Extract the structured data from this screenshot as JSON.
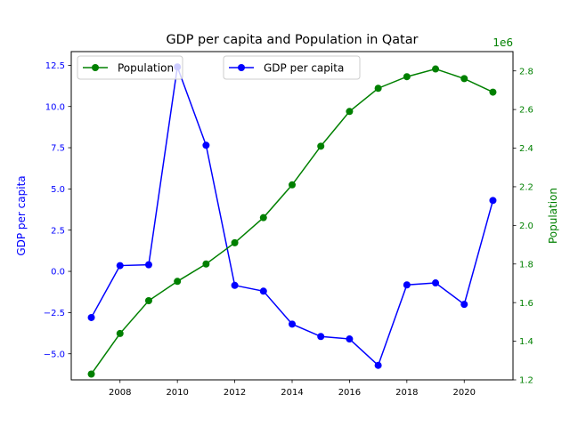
{
  "chart_data": {
    "type": "line",
    "title": "GDP per capita and Population in Qatar",
    "x": [
      2007,
      2008,
      2009,
      2010,
      2011,
      2012,
      2013,
      2014,
      2015,
      2016,
      2017,
      2018,
      2019,
      2020,
      2021
    ],
    "xlim": [
      2006.3,
      2021.7
    ],
    "xticks": [
      2008,
      2010,
      2012,
      2014,
      2016,
      2018,
      2020
    ],
    "grid": false,
    "left_axis": {
      "label": "GDP per capita",
      "color": "#0000ff",
      "ylim": [
        -6.58,
        13.33
      ],
      "ticks": [
        -5.0,
        -2.5,
        0.0,
        2.5,
        5.0,
        7.5,
        10.0,
        12.5
      ],
      "tick_labels": [
        "−5.0",
        "−2.5",
        "0.0",
        "2.5",
        "5.0",
        "7.5",
        "10.0",
        "12.5"
      ]
    },
    "right_axis": {
      "label": "Population",
      "color": "#008000",
      "offset_text": "1e6",
      "ylim": [
        1.2,
        2.9
      ],
      "ticks": [
        1.2,
        1.4,
        1.6,
        1.8,
        2.0,
        2.2,
        2.4,
        2.6,
        2.8
      ],
      "tick_labels": [
        "1.2",
        "1.4",
        "1.6",
        "1.8",
        "2.0",
        "2.2",
        "2.4",
        "2.6",
        "2.8"
      ]
    },
    "series": [
      {
        "name": "GDP per capita",
        "axis": "left",
        "color": "#0000ff",
        "values": [
          -2.8,
          0.35,
          0.4,
          12.4,
          7.65,
          -0.85,
          -1.2,
          -3.2,
          -3.95,
          -4.1,
          -5.7,
          -0.82,
          -0.7,
          -2.0,
          4.3
        ]
      },
      {
        "name": "Population",
        "axis": "right",
        "color": "#008000",
        "values": [
          1.23,
          1.44,
          1.61,
          1.71,
          1.8,
          1.91,
          2.04,
          2.21,
          2.41,
          2.59,
          2.71,
          2.77,
          2.81,
          2.76,
          2.69
        ]
      }
    ],
    "legends": [
      {
        "placement": "upper-left",
        "entries": [
          "Population"
        ]
      },
      {
        "placement": "upper-center",
        "entries": [
          "GDP per capita"
        ]
      }
    ]
  }
}
